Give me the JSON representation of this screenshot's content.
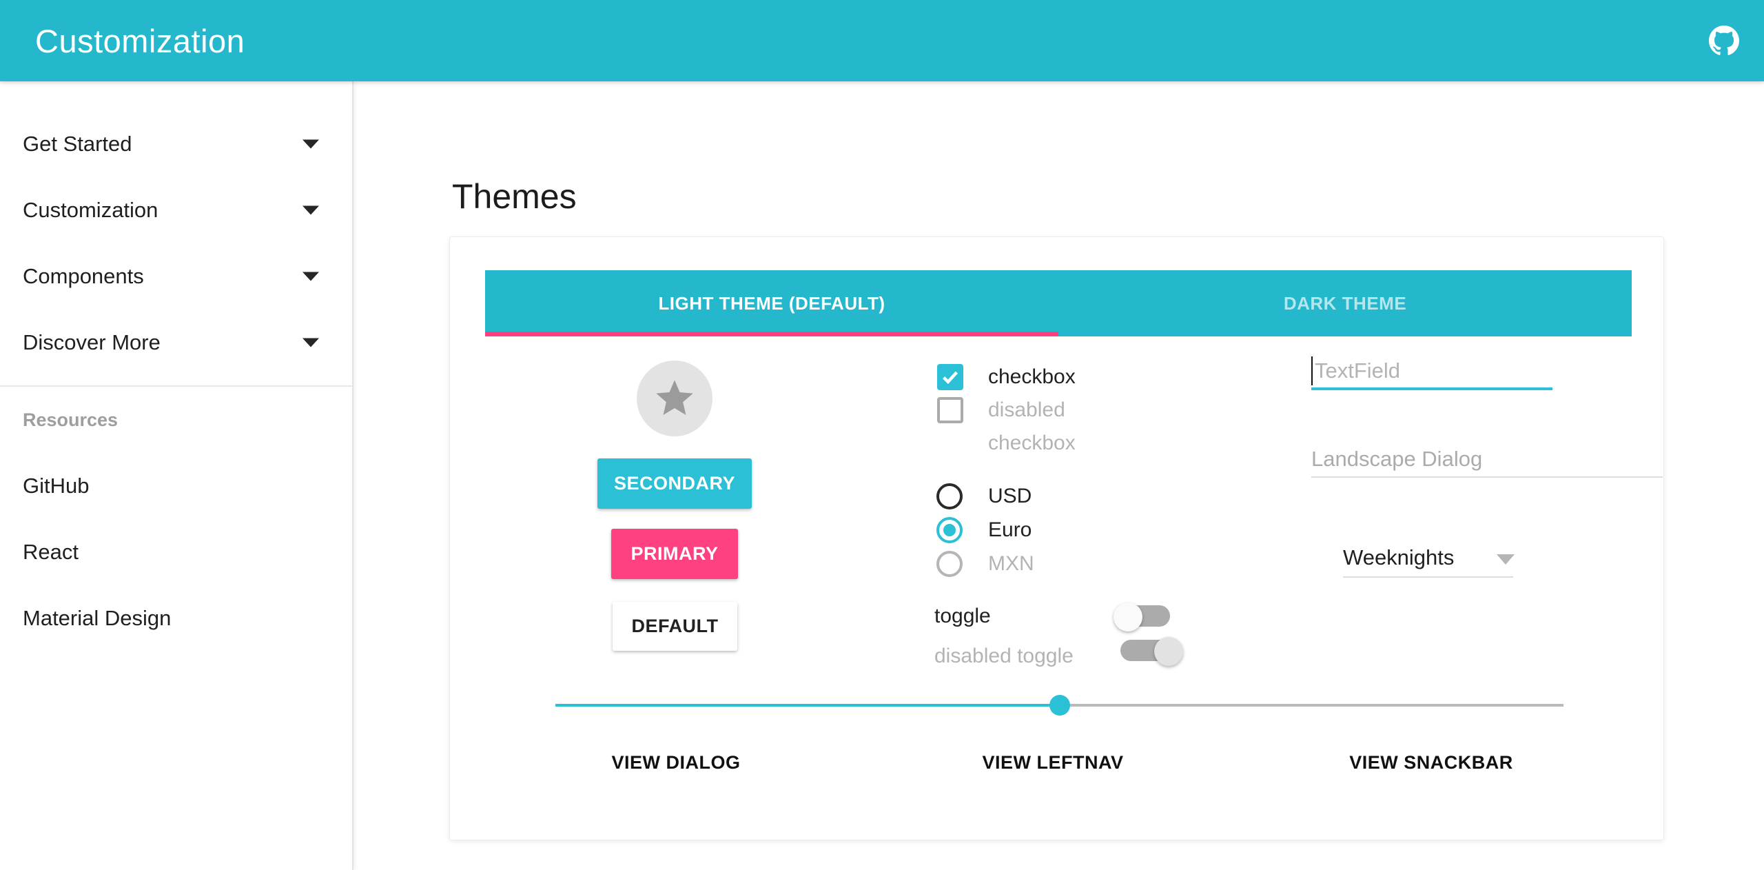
{
  "appbar": {
    "title": "Customization"
  },
  "sidebar": {
    "items": [
      {
        "label": "Get Started"
      },
      {
        "label": "Customization"
      },
      {
        "label": "Components"
      },
      {
        "label": "Discover More"
      }
    ],
    "section_header": "Resources",
    "links": [
      {
        "label": "GitHub"
      },
      {
        "label": "React"
      },
      {
        "label": "Material Design"
      }
    ]
  },
  "main": {
    "heading": "Themes",
    "tabs": [
      {
        "label": "LIGHT THEME (DEFAULT)",
        "active": true
      },
      {
        "label": "DARK THEME",
        "active": false
      }
    ],
    "demo": {
      "buttons": [
        {
          "label": "SECONDARY",
          "variant": "secondary"
        },
        {
          "label": "PRIMARY",
          "variant": "primary"
        },
        {
          "label": "DEFAULT",
          "variant": "default"
        }
      ],
      "checkboxes": [
        {
          "label": "checkbox",
          "checked": true,
          "disabled": false
        },
        {
          "label": "disabled checkbox",
          "checked": false,
          "disabled": true
        }
      ],
      "radios": [
        {
          "label": "USD",
          "selected": false,
          "disabled": false
        },
        {
          "label": "Euro",
          "selected": true,
          "disabled": false
        },
        {
          "label": "MXN",
          "selected": false,
          "disabled": true
        }
      ],
      "toggles": [
        {
          "label": "toggle",
          "on": false,
          "disabled": false
        },
        {
          "label": "disabled toggle",
          "on": true,
          "disabled": true
        }
      ],
      "textfield": {
        "placeholder": "TextField",
        "value": ""
      },
      "landscape_field": {
        "placeholder": "Landscape Dialog"
      },
      "dropdown": {
        "value": "Weeknights"
      },
      "slider": {
        "value_percent": 50
      },
      "actions": [
        {
          "label": "VIEW DIALOG"
        },
        {
          "label": "VIEW LEFTNAV"
        },
        {
          "label": "VIEW SNACKBAR"
        }
      ]
    }
  },
  "colors": {
    "accent_teal": "#25b8cc",
    "control_teal": "#2bc0d5",
    "accent_pink": "#ff4081",
    "text_dark": "#212121",
    "disabled_gray": "#b3b3b3"
  }
}
